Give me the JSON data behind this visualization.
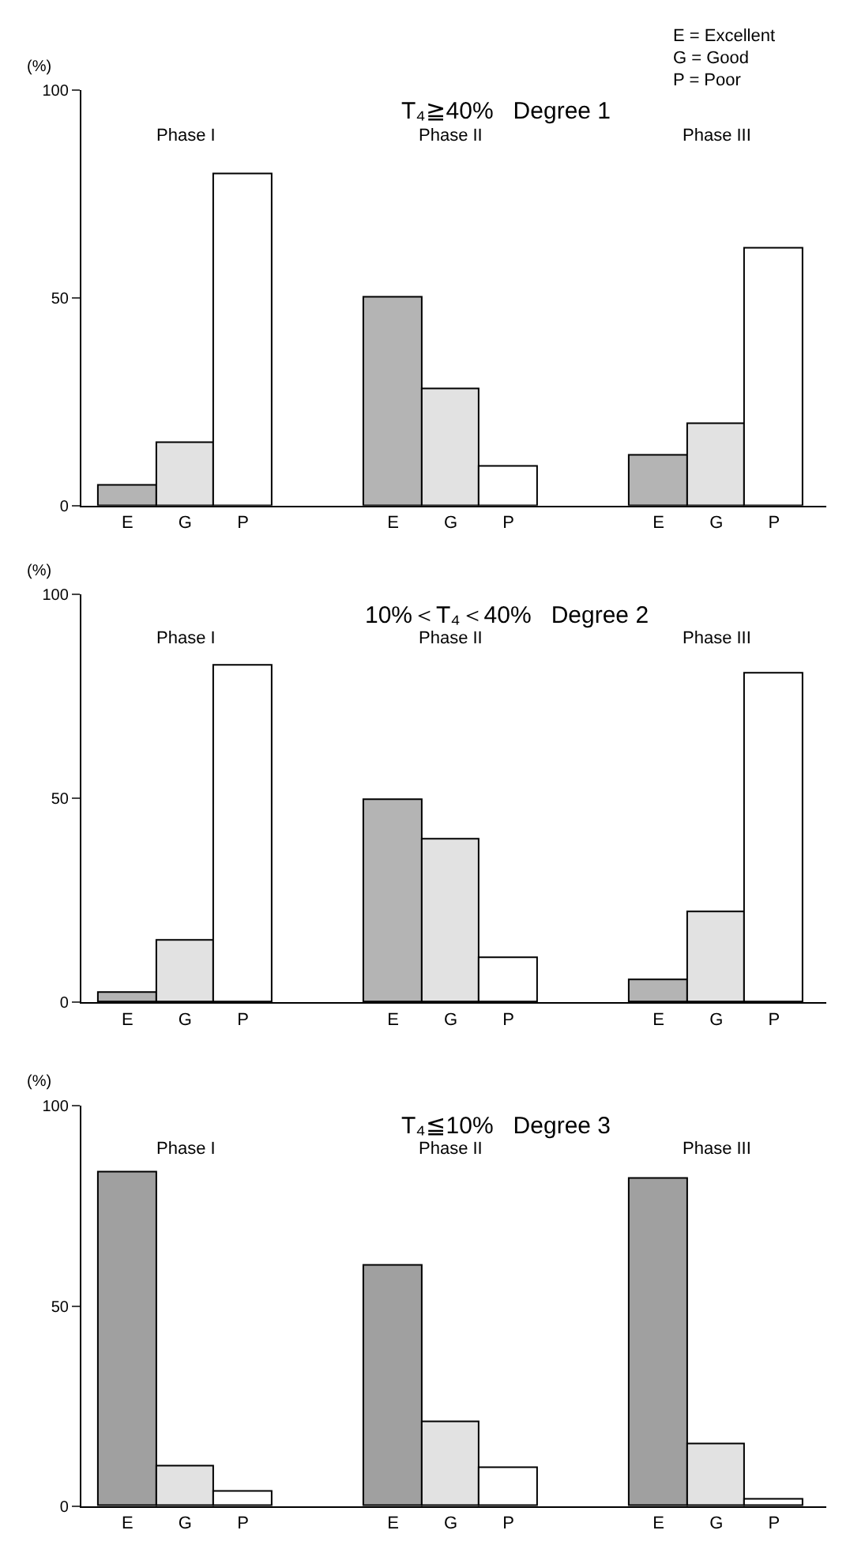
{
  "chart_data": [
    {
      "type": "bar",
      "title": "T₄≧40%   Degree 1",
      "ylabel": "(%)",
      "categories": [
        "E",
        "G",
        "P",
        "E",
        "G",
        "P",
        "E",
        "G",
        "P"
      ],
      "values": [
        5,
        15,
        80,
        50,
        28,
        9.5,
        12,
        19.5,
        62
      ],
      "colors": [
        "#b4b4b4",
        "#e2e2e2",
        "#ffffff",
        "#b4b4b4",
        "#e2e2e2",
        "#ffffff",
        "#b4b4b4",
        "#e2e2e2",
        "#ffffff"
      ],
      "ylim": [
        0,
        100
      ],
      "yticks": [
        0,
        50,
        100
      ],
      "annotations": [
        "Phase I",
        "Phase II",
        "Phase III",
        "E = Excellent",
        "G = Good",
        "P = Poor"
      ]
    },
    {
      "type": "bar",
      "title": "10%＜T₄＜40%   Degree 2",
      "ylabel": "(%)",
      "categories": [
        "E",
        "G",
        "P",
        "E",
        "G",
        "P",
        "E",
        "G",
        "P"
      ],
      "values": [
        2.5,
        15,
        82.5,
        49.5,
        40,
        11,
        5.5,
        22,
        80.5
      ],
      "colors": [
        "#b4b4b4",
        "#e2e2e2",
        "#ffffff",
        "#b4b4b4",
        "#e2e2e2",
        "#ffffff",
        "#b4b4b4",
        "#e2e2e2",
        "#ffffff"
      ],
      "ylim": [
        0,
        100
      ],
      "yticks": [
        0,
        50,
        100
      ],
      "annotations": [
        "Phase I",
        "Phase II",
        "Phase III"
      ]
    },
    {
      "type": "bar",
      "title": "T₄≦10%   Degree 3",
      "ylabel": "(%)",
      "categories": [
        "E",
        "G",
        "P",
        "E",
        "G",
        "P",
        "E",
        "G",
        "P"
      ],
      "values": [
        83.5,
        10,
        3.5,
        60,
        21,
        9.5,
        82,
        15.5,
        1.5
      ],
      "colors": [
        "#a0a0a0",
        "#e2e2e2",
        "#ffffff",
        "#a0a0a0",
        "#e2e2e2",
        "#ffffff",
        "#a0a0a0",
        "#e2e2e2",
        "#ffffff"
      ],
      "ylim": [
        0,
        100
      ],
      "yticks": [
        0,
        50,
        100
      ],
      "annotations": [
        "Phase I",
        "Phase II",
        "Phase III"
      ]
    }
  ]
}
